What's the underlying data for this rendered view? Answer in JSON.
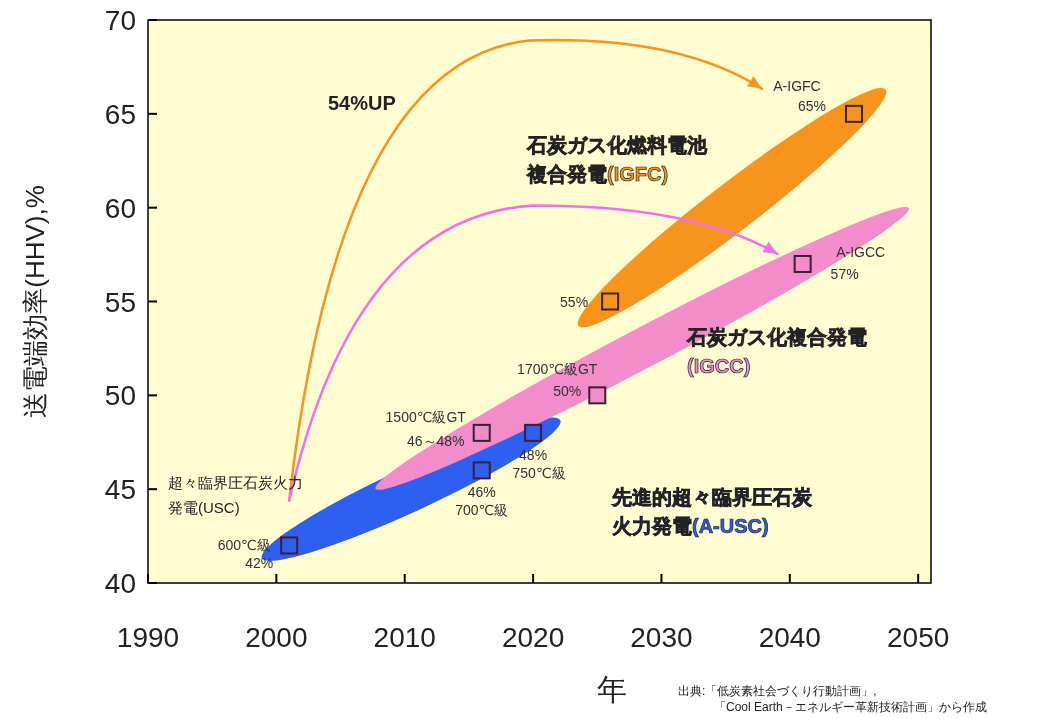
{
  "chart_data": {
    "type": "scatter",
    "xlabel": "年",
    "ylabel": "送電端効率(HHV),%",
    "xlim": [
      1990,
      2051
    ],
    "ylim": [
      40,
      70
    ],
    "xticks": [
      1990,
      2000,
      2010,
      2020,
      2030,
      2040,
      2050
    ],
    "yticks": [
      40,
      45,
      50,
      55,
      60,
      65,
      70
    ],
    "marker": "square",
    "series": [
      {
        "name": "先進的超々臨界圧石炭火力発電(A-USC)",
        "color": "#2f5ff0",
        "x": [
          2001,
          2016,
          2020
        ],
        "values": [
          42,
          46,
          48
        ],
        "value_labels": [
          "42%",
          "46%",
          "48%"
        ]
      },
      {
        "name": "石炭ガス化複合発電(IGCC)",
        "color": "#f28ccb",
        "x": [
          2016,
          2025,
          2041
        ],
        "values": [
          48,
          50,
          57
        ],
        "value_labels": [
          "46～48%",
          "50%",
          "57%"
        ]
      },
      {
        "name": "石炭ガス化燃料電池複合発電(IGFC)",
        "color": "#f7941d",
        "x": [
          2026,
          2045
        ],
        "values": [
          55,
          65
        ],
        "value_labels": [
          "55%",
          "65%"
        ]
      }
    ],
    "annotations": [
      "54%UP",
      "超々臨界圧石炭火力発電(USC)",
      "出典:「低炭素社会づくり行動計画」,\n「Cool Earth－エネルギー革新技術計画」から作成",
      {
        "text": "600℃級",
        "x": 2001,
        "y": 42
      },
      {
        "text": "700℃級",
        "x": 2016,
        "y": 46
      },
      {
        "text": "750℃級",
        "x": 2020,
        "y": 48
      },
      {
        "text": "1500℃級GT",
        "x": 2016,
        "y": 48
      },
      {
        "text": "1700℃級GT",
        "x": 2025,
        "y": 50
      },
      {
        "text": "A-IGCC",
        "x": 2041,
        "y": 57
      },
      {
        "text": "A-IGFC",
        "x": 2045,
        "y": 65
      }
    ]
  }
}
